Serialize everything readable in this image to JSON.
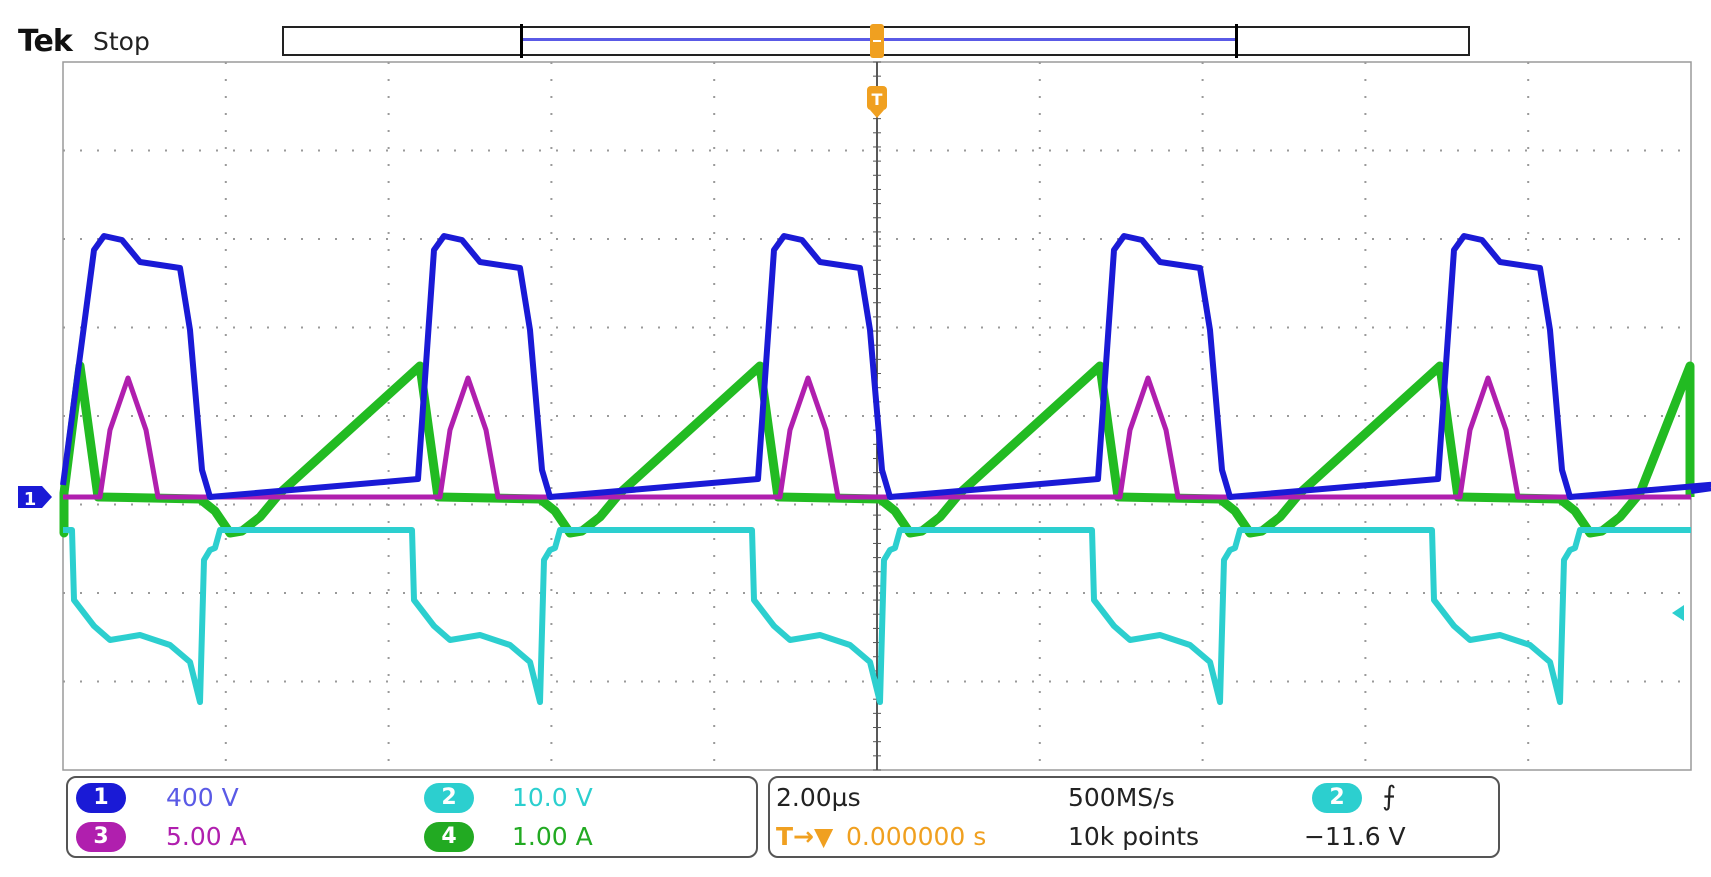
{
  "header": {
    "brand": "Tek",
    "state": "Stop"
  },
  "colors": {
    "ch1": "#1a1ad6",
    "ch2": "#2ccfcf",
    "ch3": "#b01fae",
    "ch4": "#22bb22",
    "trigger": "#f0a020",
    "grid": "#9a9a9a",
    "record_view": "#5a5ae6"
  },
  "markers": {
    "trigger_position_icon": "T",
    "ch1_ground_marker": "1",
    "ch2_offset_marker": "arrow-left-icon"
  },
  "channels": [
    {
      "num": "1",
      "scale": "400 V",
      "color": "#1a1ad6"
    },
    {
      "num": "2",
      "scale": "10.0 V",
      "color": "#2ccfcf"
    },
    {
      "num": "3",
      "scale": "5.00 A",
      "color": "#b01fae"
    },
    {
      "num": "4",
      "scale": "1.00 A",
      "color": "#22bb22"
    }
  ],
  "timebase": {
    "scale": "2.00µs",
    "sample_rate": "500MS/s",
    "record_length": "10k points",
    "trigger_delay_icon": "T→▼",
    "trigger_delay": "0.000000 s"
  },
  "trigger": {
    "source": "2",
    "slope_icon": "rising-edge-icon",
    "slope_glyph": "⨍",
    "level": "−11.6 V"
  }
}
